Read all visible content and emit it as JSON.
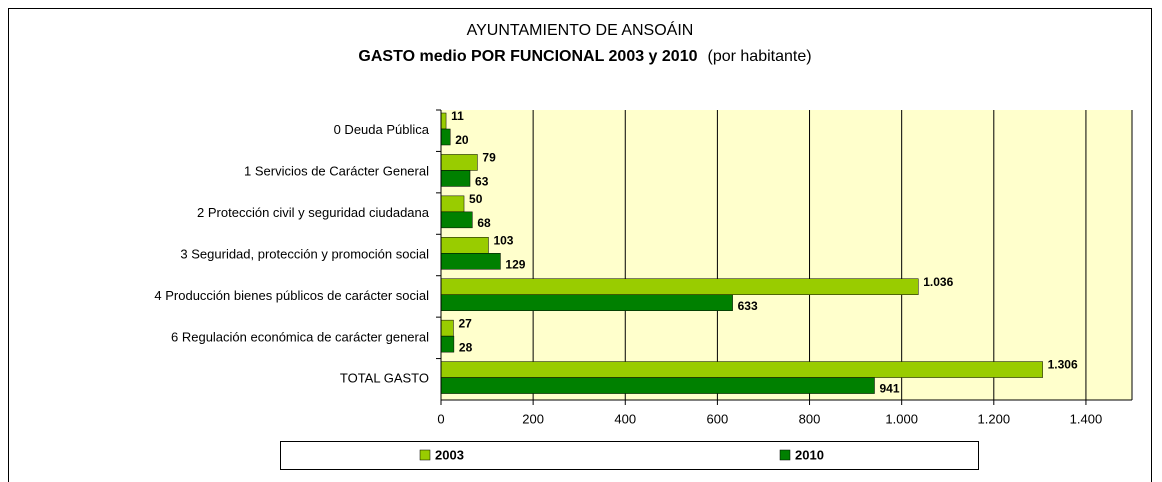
{
  "chart_data": {
    "type": "hbar",
    "title": "AYUNTAMIENTO DE ANSOÁIN",
    "subtitle": "GASTO medio POR FUNCIONAL 2003 y 2010",
    "subtitle_note": "(por habitante)",
    "categories": [
      "0  Deuda Pública",
      "1  Servicios de Carácter General",
      "2  Protección civil y seguridad ciudadana",
      "3  Seguridad, protección y promoción social",
      "4  Producción bienes públicos de carácter social",
      "6  Regulación económica de carácter general",
      "TOTAL GASTO"
    ],
    "series": [
      {
        "name": "2003",
        "color": "#99cc00",
        "values": [
          11,
          79,
          50,
          103,
          1036,
          27,
          1306
        ],
        "value_labels": [
          "11",
          "79",
          "50",
          "103",
          "1.036",
          "27",
          "1.306"
        ]
      },
      {
        "name": "2010",
        "color": "#008000",
        "values": [
          20,
          63,
          68,
          129,
          633,
          28,
          941
        ],
        "value_labels": [
          "20",
          "63",
          "68",
          "129",
          "633",
          "28",
          "941"
        ]
      }
    ],
    "xlim": [
      0,
      1500
    ],
    "xticks": [
      0,
      200,
      400,
      600,
      800,
      {
        "value": 1000,
        "label": "1.000"
      },
      {
        "value": 1200,
        "label": "1.200"
      },
      {
        "value": 1400,
        "label": "1.400"
      }
    ],
    "grid": true,
    "legend": "bottom"
  }
}
